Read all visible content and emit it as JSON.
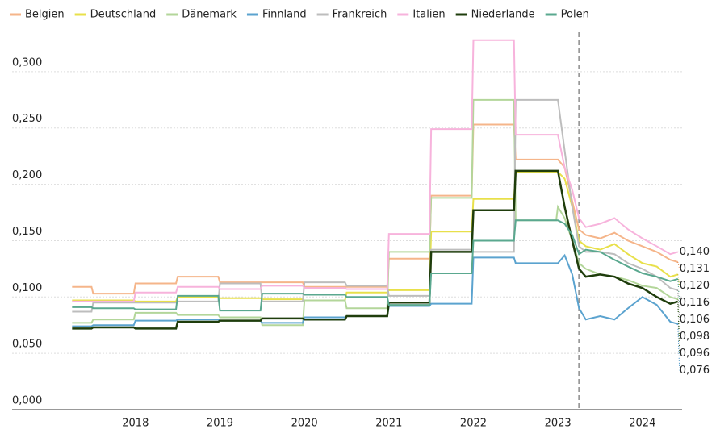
{
  "chart_data": {
    "type": "line",
    "x": [
      2017.25,
      2017.48,
      2017.5,
      2017.98,
      2018,
      2018.48,
      2018.5,
      2018.98,
      2019,
      2019.48,
      2019.5,
      2019.98,
      2020,
      2020.48,
      2020.5,
      2020.98,
      2021,
      2021.48,
      2021.5,
      2021.98,
      2022,
      2022.48,
      2022.5,
      2022.98,
      2023,
      2023.08,
      2023.17,
      2023.25,
      2023.33,
      2023.5,
      2023.67,
      2023.83,
      2024,
      2024.17,
      2024.33,
      2024.42
    ],
    "xlim": [
      2016.54,
      2024.47
    ],
    "xticks": [
      2018,
      2019,
      2020,
      2021,
      2022,
      2023,
      2024
    ],
    "ylim": [
      0,
      0.335
    ],
    "yticks": [
      {
        "value": 0,
        "label": "0,000"
      },
      {
        "value": 0.05,
        "label": "0,050"
      },
      {
        "value": 0.1,
        "label": "0,100"
      },
      {
        "value": 0.15,
        "label": "0,150"
      },
      {
        "value": 0.2,
        "label": "0,200"
      },
      {
        "value": 0.25,
        "label": "0,250"
      },
      {
        "value": 0.3,
        "label": "0,300"
      }
    ],
    "grid": true,
    "vline": 2023.25,
    "legend": "top",
    "series": [
      {
        "name": "Belgien",
        "color": "#f5b58a",
        "label_color": "#e0884f",
        "values": [
          0.109,
          0.109,
          0.103,
          0.103,
          0.112,
          0.112,
          0.118,
          0.118,
          0.113,
          0.113,
          0.113,
          0.113,
          0.109,
          0.109,
          0.109,
          0.109,
          0.134,
          0.134,
          0.19,
          0.19,
          0.253,
          0.253,
          0.222,
          0.222,
          0.222,
          0.215,
          0.185,
          0.16,
          0.155,
          0.152,
          0.157,
          0.15,
          0.145,
          0.14,
          0.133,
          0.131
        ],
        "value_labels": [
          null,
          null,
          null,
          null,
          null,
          null,
          null,
          null,
          null,
          null,
          null,
          null,
          null,
          null,
          null,
          null,
          null,
          null,
          null,
          null,
          null,
          null,
          null,
          null,
          null,
          null,
          null,
          null,
          null,
          null,
          null,
          null,
          null,
          null,
          null,
          "0,131"
        ]
      },
      {
        "name": "Deutschland",
        "color": "#e8e04a",
        "label_color": "#b8a800",
        "values": [
          0.097,
          0.097,
          0.097,
          0.097,
          0.096,
          0.096,
          0.1,
          0.1,
          0.099,
          0.099,
          0.098,
          0.098,
          0.097,
          0.097,
          0.104,
          0.104,
          0.106,
          0.106,
          0.158,
          0.158,
          0.187,
          0.187,
          0.211,
          0.211,
          0.211,
          0.205,
          0.18,
          0.15,
          0.145,
          0.142,
          0.147,
          0.138,
          0.13,
          0.127,
          0.118,
          0.12
        ],
        "value_labels": [
          null,
          null,
          null,
          null,
          null,
          null,
          null,
          null,
          null,
          null,
          null,
          null,
          null,
          null,
          null,
          null,
          null,
          null,
          null,
          null,
          null,
          null,
          null,
          null,
          null,
          null,
          null,
          null,
          null,
          null,
          null,
          null,
          null,
          null,
          null,
          "0,120"
        ]
      },
      {
        "name": "Dänemark",
        "color": "#b3d69a",
        "label_color": "#7aa85c",
        "values": [
          0.077,
          0.077,
          0.08,
          0.08,
          0.086,
          0.086,
          0.084,
          0.084,
          0.082,
          0.082,
          0.075,
          0.075,
          0.097,
          0.097,
          0.09,
          0.09,
          0.14,
          0.14,
          0.188,
          0.188,
          0.275,
          0.275,
          0.168,
          0.168,
          0.18,
          0.17,
          0.15,
          0.13,
          0.125,
          0.12,
          0.118,
          0.115,
          0.11,
          0.108,
          0.1,
          0.098
        ],
        "value_labels": [
          null,
          null,
          null,
          null,
          null,
          null,
          null,
          null,
          null,
          null,
          null,
          null,
          null,
          null,
          null,
          null,
          null,
          null,
          null,
          null,
          null,
          null,
          null,
          null,
          null,
          null,
          null,
          null,
          null,
          null,
          null,
          null,
          null,
          null,
          null,
          "0,098"
        ]
      },
      {
        "name": "Finnland",
        "color": "#5ba3cf",
        "label_color": "#3c8cc0",
        "values": [
          0.074,
          0.074,
          0.075,
          0.075,
          0.079,
          0.079,
          0.08,
          0.08,
          0.079,
          0.079,
          0.077,
          0.077,
          0.082,
          0.082,
          0.083,
          0.083,
          0.092,
          0.092,
          0.094,
          0.094,
          0.135,
          0.135,
          0.13,
          0.13,
          0.13,
          0.137,
          0.12,
          0.09,
          0.08,
          0.083,
          0.08,
          0.09,
          0.1,
          0.093,
          0.078,
          0.076
        ],
        "value_labels": [
          null,
          null,
          null,
          null,
          null,
          null,
          null,
          null,
          null,
          null,
          null,
          null,
          null,
          null,
          null,
          null,
          null,
          null,
          null,
          null,
          null,
          null,
          null,
          null,
          null,
          null,
          null,
          null,
          null,
          null,
          null,
          null,
          null,
          null,
          null,
          "0,076"
        ]
      },
      {
        "name": "Frankreich",
        "color": "#bdbdbd",
        "label_color": "#8f8f8f",
        "values": [
          0.087,
          0.087,
          0.095,
          0.095,
          0.095,
          0.095,
          0.096,
          0.096,
          0.112,
          0.112,
          0.096,
          0.096,
          0.113,
          0.113,
          0.11,
          0.11,
          0.101,
          0.101,
          0.142,
          0.142,
          0.14,
          0.14,
          0.275,
          0.275,
          0.275,
          0.23,
          0.18,
          0.145,
          0.14,
          0.14,
          0.138,
          0.13,
          0.125,
          0.118,
          0.108,
          0.106
        ],
        "value_labels": [
          null,
          null,
          null,
          null,
          null,
          null,
          null,
          null,
          null,
          null,
          null,
          null,
          null,
          null,
          null,
          null,
          null,
          null,
          null,
          null,
          null,
          null,
          null,
          null,
          null,
          null,
          null,
          null,
          null,
          null,
          null,
          null,
          null,
          null,
          null,
          "0,106"
        ]
      },
      {
        "name": "Italien",
        "color": "#f7b3dc",
        "label_color": "#c9659f",
        "values": [
          0.096,
          0.096,
          0.096,
          0.096,
          0.104,
          0.104,
          0.109,
          0.109,
          0.107,
          0.107,
          0.11,
          0.11,
          0.108,
          0.108,
          0.107,
          0.107,
          0.156,
          0.156,
          0.249,
          0.249,
          0.328,
          0.328,
          0.244,
          0.244,
          0.244,
          0.215,
          0.195,
          0.17,
          0.162,
          0.165,
          0.17,
          0.16,
          0.152,
          0.145,
          0.138,
          0.14
        ],
        "value_labels": [
          null,
          null,
          null,
          null,
          null,
          null,
          null,
          null,
          null,
          null,
          null,
          null,
          null,
          null,
          null,
          null,
          null,
          null,
          null,
          null,
          null,
          null,
          null,
          null,
          null,
          null,
          null,
          null,
          null,
          null,
          null,
          null,
          null,
          null,
          null,
          "0,140"
        ]
      },
      {
        "name": "Niederlande",
        "color": "#1f3d0c",
        "label_color": "#1f3d0c",
        "values": [
          0.072,
          0.072,
          0.073,
          0.073,
          0.072,
          0.072,
          0.078,
          0.078,
          0.079,
          0.079,
          0.081,
          0.081,
          0.08,
          0.08,
          0.083,
          0.083,
          0.095,
          0.095,
          0.14,
          0.14,
          0.177,
          0.177,
          0.212,
          0.212,
          0.212,
          0.18,
          0.15,
          0.125,
          0.118,
          0.12,
          0.118,
          0.112,
          0.108,
          0.1,
          0.094,
          0.096
        ],
        "value_labels": [
          null,
          null,
          null,
          null,
          null,
          null,
          null,
          null,
          null,
          null,
          null,
          null,
          null,
          null,
          null,
          null,
          null,
          null,
          null,
          null,
          null,
          null,
          null,
          null,
          null,
          null,
          null,
          null,
          null,
          null,
          null,
          null,
          null,
          null,
          null,
          "0,096"
        ]
      },
      {
        "name": "Polen",
        "color": "#5aa88f",
        "label_color": "#3f9277",
        "values": [
          0.091,
          0.091,
          0.09,
          0.09,
          0.089,
          0.089,
          0.101,
          0.101,
          0.088,
          0.088,
          0.103,
          0.103,
          0.102,
          0.102,
          0.1,
          0.1,
          0.093,
          0.093,
          0.121,
          0.121,
          0.15,
          0.15,
          0.168,
          0.168,
          0.168,
          0.165,
          0.155,
          0.138,
          0.142,
          0.14,
          0.133,
          0.127,
          0.121,
          0.118,
          0.114,
          0.116
        ],
        "value_labels": [
          null,
          null,
          null,
          null,
          null,
          null,
          null,
          null,
          null,
          null,
          null,
          null,
          null,
          null,
          null,
          null,
          null,
          null,
          null,
          null,
          null,
          null,
          null,
          null,
          null,
          null,
          null,
          null,
          null,
          null,
          null,
          null,
          null,
          null,
          null,
          "0,116"
        ]
      }
    ]
  }
}
